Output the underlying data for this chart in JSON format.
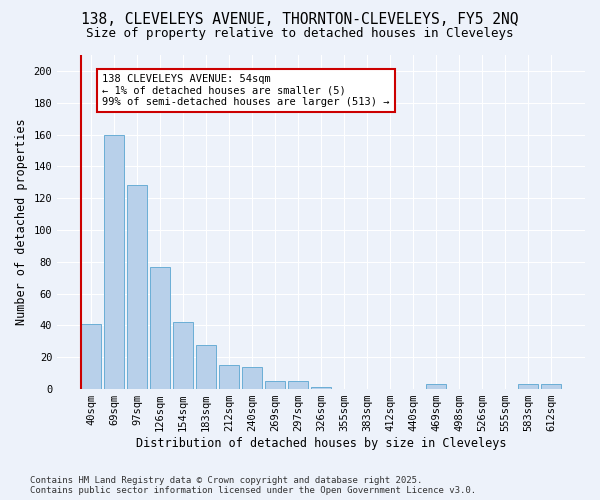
{
  "title_line1": "138, CLEVELEYS AVENUE, THORNTON-CLEVELEYS, FY5 2NQ",
  "title_line2": "Size of property relative to detached houses in Cleveleys",
  "xlabel": "Distribution of detached houses by size in Cleveleys",
  "ylabel": "Number of detached properties",
  "categories": [
    "40sqm",
    "69sqm",
    "97sqm",
    "126sqm",
    "154sqm",
    "183sqm",
    "212sqm",
    "240sqm",
    "269sqm",
    "297sqm",
    "326sqm",
    "355sqm",
    "383sqm",
    "412sqm",
    "440sqm",
    "469sqm",
    "498sqm",
    "526sqm",
    "555sqm",
    "583sqm",
    "612sqm"
  ],
  "values": [
    41,
    160,
    128,
    77,
    42,
    28,
    15,
    14,
    5,
    5,
    1,
    0,
    0,
    0,
    0,
    3,
    0,
    0,
    0,
    3,
    3
  ],
  "bar_color": "#b8d0ea",
  "bar_edge_color": "#6aaed6",
  "annotation_box_color": "#ffffff",
  "annotation_border_color": "#cc0000",
  "annotation_line1": "138 CLEVELEYS AVENUE: 54sqm",
  "annotation_line2": "← 1% of detached houses are smaller (5)",
  "annotation_line3": "99% of semi-detached houses are larger (513) →",
  "red_line_x": 0,
  "ylim_max": 210,
  "yticks": [
    0,
    20,
    40,
    60,
    80,
    100,
    120,
    140,
    160,
    180,
    200
  ],
  "footnote_line1": "Contains HM Land Registry data © Crown copyright and database right 2025.",
  "footnote_line2": "Contains public sector information licensed under the Open Government Licence v3.0.",
  "background_color": "#edf2fa",
  "grid_color": "#ffffff",
  "title_fontsize": 10.5,
  "subtitle_fontsize": 9,
  "label_fontsize": 8.5,
  "tick_fontsize": 7.5,
  "annotation_fontsize": 7.5,
  "footnote_fontsize": 6.5
}
